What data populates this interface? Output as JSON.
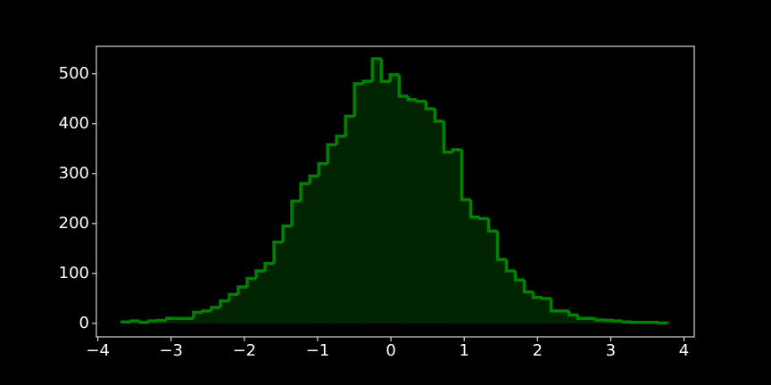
{
  "chart_data": {
    "type": "histogram",
    "bins": [
      -3.67,
      -3.548,
      -3.426,
      -3.304,
      -3.182,
      -3.06,
      -2.938,
      -2.816,
      -2.694,
      -2.572,
      -2.45,
      -2.328,
      -2.206,
      -2.084,
      -1.962,
      -1.84,
      -1.718,
      -1.596,
      -1.474,
      -1.352,
      -1.23,
      -1.108,
      -0.986,
      -0.864,
      -0.742,
      -0.62,
      -0.498,
      -0.376,
      -0.254,
      -0.132,
      -0.01,
      0.112,
      0.234,
      0.356,
      0.478,
      0.6,
      0.722,
      0.844,
      0.966,
      1.088,
      1.21,
      1.332,
      1.454,
      1.576,
      1.698,
      1.82,
      1.942,
      2.064,
      2.186,
      2.308,
      2.43,
      2.552,
      2.674,
      2.796,
      2.918,
      3.04,
      3.162,
      3.284,
      3.406,
      3.528,
      3.65,
      3.772
    ],
    "values": [
      3,
      5,
      2,
      5,
      6,
      10,
      10,
      10,
      22,
      25,
      32,
      45,
      58,
      73,
      90,
      105,
      120,
      163,
      195,
      245,
      280,
      295,
      320,
      358,
      375,
      415,
      480,
      485,
      530,
      485,
      498,
      455,
      448,
      445,
      430,
      405,
      343,
      348,
      248,
      213,
      210,
      185,
      128,
      105,
      87,
      63,
      52,
      50,
      25,
      25,
      17,
      10,
      10,
      7,
      6,
      5,
      3,
      2,
      2,
      2,
      1
    ],
    "color": "#008000",
    "fill_color": "#002400",
    "xlim": [
      -4.02,
      4.14
    ],
    "xticks": [
      {
        "value": -4,
        "label": "−4"
      },
      {
        "value": -3,
        "label": "−3"
      },
      {
        "value": -2,
        "label": "−2"
      },
      {
        "value": -1,
        "label": "−1"
      },
      0,
      1,
      2,
      3,
      4
    ],
    "ylim": [
      -27,
      555
    ],
    "yticks": [
      0,
      100,
      200,
      300,
      400,
      500
    ]
  }
}
